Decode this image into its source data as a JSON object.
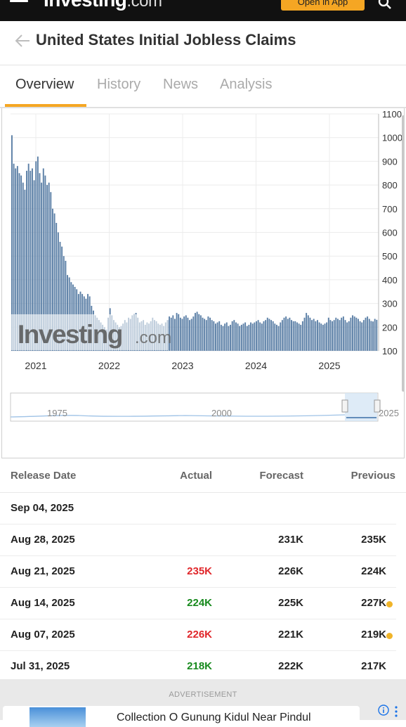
{
  "header": {
    "logo_text": "Investing",
    "logo_domain": ".com",
    "open_app_label": "Open in App"
  },
  "page": {
    "title": "United States Initial Jobless Claims"
  },
  "tabs": [
    {
      "label": "Overview",
      "active": true
    },
    {
      "label": "History",
      "active": false
    },
    {
      "label": "News",
      "active": false
    },
    {
      "label": "Analysis",
      "active": false
    }
  ],
  "chart_data": {
    "type": "bar",
    "xlabel": "",
    "ylabel": "",
    "x_ticks": [
      "2021",
      "2022",
      "2023",
      "2024",
      "2025"
    ],
    "y_ticks": [
      100,
      200,
      300,
      400,
      500,
      600,
      700,
      800,
      900,
      1000,
      1100
    ],
    "ylim": [
      100,
      1100
    ],
    "grid": true,
    "watermark": "Investing",
    "watermark_domain": ".com",
    "series": [
      {
        "values": [
          1010,
          890,
          870,
          880,
          850,
          840,
          810,
          780,
          860,
          890,
          860,
          870,
          820,
          900,
          920,
          850,
          810,
          870,
          840,
          800,
          810,
          770,
          700,
          680,
          640,
          600,
          560,
          540,
          500,
          480,
          420,
          410,
          390,
          380,
          370,
          360,
          340,
          350,
          340,
          330,
          320,
          340,
          330,
          290,
          270,
          250,
          240,
          230,
          220,
          210,
          200,
          190,
          240,
          280,
          250,
          230,
          220,
          210,
          200,
          205,
          215,
          230,
          220,
          240,
          235,
          250,
          255,
          260,
          240,
          220,
          225,
          230,
          210,
          220,
          215,
          225,
          240,
          230,
          225,
          215,
          210,
          215,
          205,
          220,
          230,
          245,
          240,
          250,
          235,
          260,
          255,
          240,
          235,
          245,
          250,
          240,
          230,
          235,
          245,
          260,
          265,
          255,
          250,
          240,
          235,
          230,
          245,
          240,
          230,
          225,
          215,
          220,
          225,
          210,
          205,
          215,
          220,
          205,
          210,
          225,
          230,
          220,
          215,
          205,
          210,
          215,
          220,
          205,
          210,
          220,
          215,
          220,
          225,
          230,
          220,
          215,
          225,
          230,
          240,
          235,
          230,
          225,
          215,
          210,
          205,
          220,
          230,
          240,
          245,
          235,
          240,
          230,
          225,
          225,
          220,
          215,
          210,
          225,
          240,
          260,
          250,
          240,
          230,
          235,
          225,
          230,
          220,
          215,
          210,
          215,
          220,
          240,
          230,
          225,
          230,
          240,
          235,
          230,
          240,
          245,
          230,
          220,
          225,
          240,
          250,
          245,
          240,
          235,
          225,
          220,
          230,
          240,
          245,
          235,
          226,
          224,
          235,
          231
        ]
      }
    ],
    "navigator_ticks": [
      "1975",
      "2000",
      "2025"
    ]
  },
  "table": {
    "headers": {
      "date": "Release Date",
      "actual": "Actual",
      "forecast": "Forecast",
      "previous": "Previous"
    },
    "rows": [
      {
        "date": "Sep 04, 2025",
        "actual": "",
        "actual_status": "",
        "forecast": "",
        "previous": "",
        "revised": false
      },
      {
        "date": "Aug 28, 2025",
        "actual": "",
        "actual_status": "",
        "forecast": "231K",
        "previous": "235K",
        "revised": false
      },
      {
        "date": "Aug 21, 2025",
        "actual": "235K",
        "actual_status": "worse",
        "forecast": "226K",
        "previous": "224K",
        "revised": false
      },
      {
        "date": "Aug 14, 2025",
        "actual": "224K",
        "actual_status": "better",
        "forecast": "225K",
        "previous": "227K",
        "revised": true
      },
      {
        "date": "Aug 07, 2025",
        "actual": "226K",
        "actual_status": "worse",
        "forecast": "221K",
        "previous": "219K",
        "revised": true
      },
      {
        "date": "Jul 31, 2025",
        "actual": "218K",
        "actual_status": "better",
        "forecast": "222K",
        "previous": "217K",
        "revised": false
      }
    ]
  },
  "ad": {
    "label": "ADVERTISEMENT",
    "text": "Collection O Gunung Kidul Near Pindul"
  },
  "colors": {
    "accent": "#f5a623",
    "bar": "#5b7fa6",
    "worse": "#e0262a",
    "better": "#188a1e",
    "revised_dot": "#f0b429"
  }
}
